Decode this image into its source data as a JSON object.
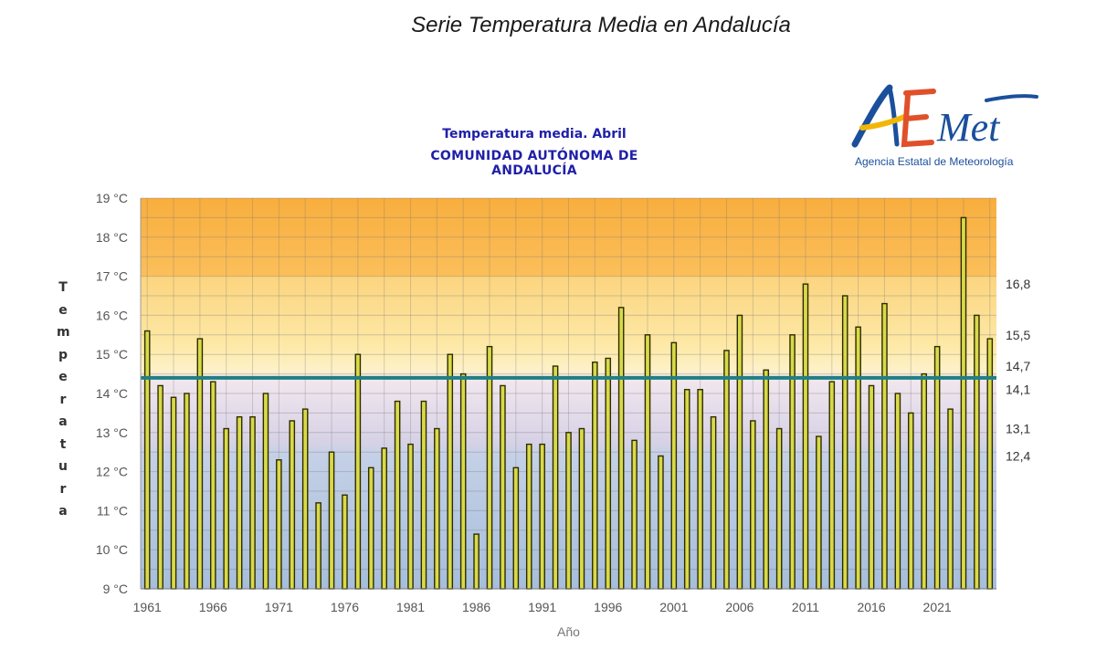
{
  "header": {
    "title": "Serie Temperatura Media en Andalucía"
  },
  "logo": {
    "wordmark": "AEMet",
    "subtitle": "Agencia Estatal de Meteorología"
  },
  "colors": {
    "bar_fill": "#d9d94a",
    "bar_stroke": "#2c2c00",
    "mean_line": "#1f7f86",
    "title_blue": "#1f1fa8"
  },
  "chart_data": {
    "type": "bar",
    "title": "Temperatura media. Abril",
    "subtitle": "COMUNIDAD AUTÓNOMA DE ANDALUCÍA",
    "xlabel": "Año",
    "ylabel": "Temperatura",
    "y_unit": "°C",
    "ylim": [
      9,
      19
    ],
    "y_ticks": [
      "9 °C",
      "10 °C",
      "11 °C",
      "12 °C",
      "13 °C",
      "14 °C",
      "15 °C",
      "16 °C",
      "17 °C",
      "18 °C",
      "19 °C"
    ],
    "x_ticks": [
      "1961",
      "1966",
      "1971",
      "1976",
      "1981",
      "1986",
      "1991",
      "1996",
      "2001",
      "2006",
      "2011",
      "2016",
      "2021"
    ],
    "grid": true,
    "mean_line": 14.4,
    "reference_levels": [
      "16,8",
      "15,5",
      "14,7",
      "14,1",
      "13,1",
      "12,4"
    ],
    "years": [
      1961,
      1962,
      1963,
      1964,
      1965,
      1966,
      1967,
      1968,
      1969,
      1970,
      1971,
      1972,
      1973,
      1974,
      1975,
      1976,
      1977,
      1978,
      1979,
      1980,
      1981,
      1982,
      1983,
      1984,
      1985,
      1986,
      1987,
      1988,
      1989,
      1990,
      1991,
      1992,
      1993,
      1994,
      1995,
      1996,
      1997,
      1998,
      1999,
      2000,
      2001,
      2002,
      2003,
      2004,
      2005,
      2006,
      2007,
      2008,
      2009,
      2010,
      2011,
      2012,
      2013,
      2014,
      2015,
      2016,
      2017,
      2018,
      2019,
      2020,
      2021,
      2022,
      2023,
      2024,
      2025
    ],
    "values": [
      15.6,
      14.2,
      13.9,
      14.0,
      15.4,
      14.3,
      13.1,
      13.4,
      13.4,
      14.0,
      12.3,
      13.3,
      13.6,
      11.2,
      12.5,
      11.4,
      15.0,
      12.1,
      12.6,
      13.8,
      12.7,
      13.8,
      13.1,
      15.0,
      14.5,
      10.4,
      15.2,
      14.2,
      12.1,
      12.7,
      12.7,
      14.7,
      13.0,
      13.1,
      14.8,
      14.9,
      16.2,
      12.8,
      15.5,
      12.4,
      15.3,
      14.1,
      14.1,
      13.4,
      15.1,
      16.0,
      13.3,
      14.6,
      13.1,
      15.5,
      16.8,
      12.9,
      14.3,
      16.5,
      15.7,
      14.2,
      16.3,
      14.0,
      13.5,
      14.5,
      15.2,
      13.6,
      18.5,
      16.0,
      15.4
    ]
  }
}
